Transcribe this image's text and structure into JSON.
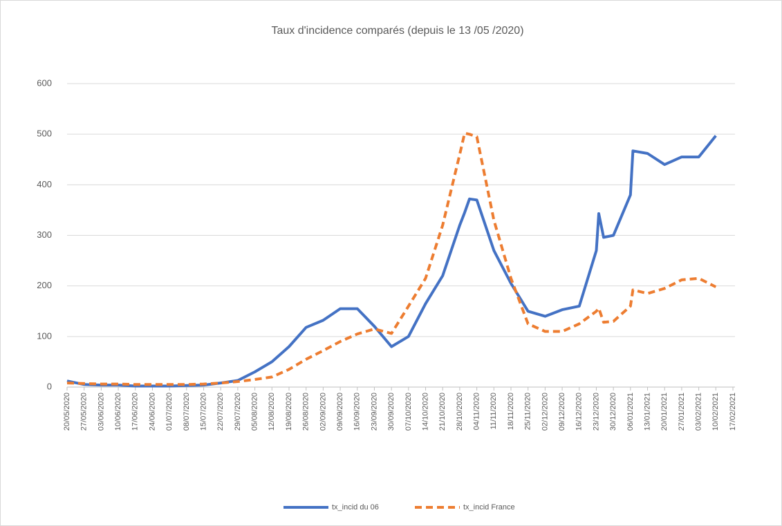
{
  "chart_data": {
    "type": "line",
    "title": "Taux d'incidence comparés (depuis le 13 /05 /2020)",
    "x": [
      "20/05/2020",
      "27/05/2020",
      "03/06/2020",
      "10/06/2020",
      "17/06/2020",
      "24/06/2020",
      "01/07/2020",
      "08/07/2020",
      "15/07/2020",
      "22/07/2020",
      "29/07/2020",
      "05/08/2020",
      "12/08/2020",
      "19/08/2020",
      "26/08/2020",
      "02/09/2020",
      "09/09/2020",
      "16/09/2020",
      "23/09/2020",
      "30/09/2020",
      "07/10/2020",
      "14/10/2020",
      "21/10/2020",
      "28/10/2020",
      "30/10/2020",
      "01/11/2020",
      "04/11/2020",
      "11/11/2020",
      "18/11/2020",
      "25/11/2020",
      "02/12/2020",
      "09/12/2020",
      "16/12/2020",
      "23/12/2020",
      "24/12/2020",
      "26/12/2020",
      "30/12/2020",
      "06/01/2021",
      "07/01/2021",
      "13/01/2021",
      "20/01/2021",
      "27/01/2021",
      "03/02/2021",
      "10/02/2021"
    ],
    "series": [
      {
        "name": "tx_incid du 06",
        "color": "#4472c4",
        "dash": false,
        "values": [
          12,
          5,
          4,
          4,
          2,
          2,
          2,
          3,
          4,
          8,
          13,
          30,
          50,
          80,
          118,
          132,
          155,
          155,
          120,
          80,
          100,
          165,
          220,
          320,
          345,
          372,
          370,
          270,
          205,
          150,
          140,
          153,
          160,
          270,
          343,
          296,
          300,
          380,
          467,
          462,
          440,
          455,
          455,
          497
        ]
      },
      {
        "name": "tx_incid France",
        "color": "#ed7d31",
        "dash": true,
        "values": [
          8,
          7,
          6,
          6,
          5,
          5,
          5,
          5,
          6,
          8,
          11,
          15,
          20,
          35,
          55,
          72,
          90,
          105,
          115,
          106,
          160,
          215,
          320,
          460,
          502,
          500,
          495,
          330,
          215,
          125,
          110,
          110,
          125,
          150,
          156,
          128,
          130,
          160,
          192,
          185,
          195,
          212,
          215,
          198
        ]
      }
    ],
    "xlim": [
      "20/05/2020",
      "17/02/2021"
    ],
    "xticks": [
      "20/05/2020",
      "27/05/2020",
      "03/06/2020",
      "10/06/2020",
      "17/06/2020",
      "24/06/2020",
      "01/07/2020",
      "08/07/2020",
      "15/07/2020",
      "22/07/2020",
      "29/07/2020",
      "05/08/2020",
      "12/08/2020",
      "19/08/2020",
      "26/08/2020",
      "02/09/2020",
      "09/09/2020",
      "16/09/2020",
      "23/09/2020",
      "30/09/2020",
      "07/10/2020",
      "14/10/2020",
      "21/10/2020",
      "28/10/2020",
      "04/11/2020",
      "11/11/2020",
      "18/11/2020",
      "25/11/2020",
      "02/12/2020",
      "09/12/2020",
      "16/12/2020",
      "23/12/2020",
      "30/12/2020",
      "06/01/2021",
      "13/01/2021",
      "20/01/2021",
      "27/01/2021",
      "03/02/2021",
      "10/02/2021",
      "17/02/2021"
    ],
    "ylim": [
      0,
      600
    ],
    "yticks": [
      0,
      100,
      200,
      300,
      400,
      500,
      600
    ],
    "grid": true,
    "legend": "bottom"
  }
}
